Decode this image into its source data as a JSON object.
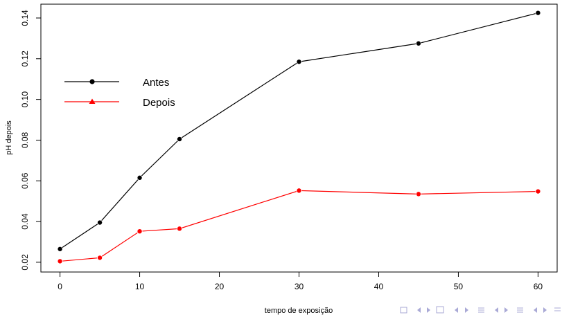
{
  "chart_data": {
    "type": "line",
    "title": "",
    "xlabel": "tempo de exposição",
    "ylabel": "pH depois",
    "x": [
      0,
      5,
      10,
      15,
      30,
      45,
      60
    ],
    "xticks": [
      "0",
      "10",
      "20",
      "30",
      "40",
      "50",
      "60"
    ],
    "yticks": [
      "0.02",
      "0.04",
      "0.06",
      "0.08",
      "0.10",
      "0.12",
      "0.14"
    ],
    "xlim": [
      -2.4,
      62.4
    ],
    "ylim": [
      0.0152,
      0.1468
    ],
    "series": [
      {
        "name": "Antes",
        "color": "#000000",
        "marker": "circle",
        "values": [
          0.0265,
          0.0395,
          0.0615,
          0.0805,
          0.1185,
          0.1275,
          0.1425
        ]
      },
      {
        "name": "Depois",
        "color": "#ff0000",
        "marker": "triangle",
        "values": [
          0.0205,
          0.0222,
          0.0352,
          0.0365,
          0.0552,
          0.0535,
          0.0548
        ]
      }
    ],
    "legend": {
      "placement": "top-left"
    },
    "grid": false
  },
  "navigation": {
    "icons": [
      "box-icon",
      "triangle-left-icon",
      "triangle-right-icon",
      "frame-icon",
      "list-icon",
      "align-icon",
      "search-icon"
    ]
  }
}
